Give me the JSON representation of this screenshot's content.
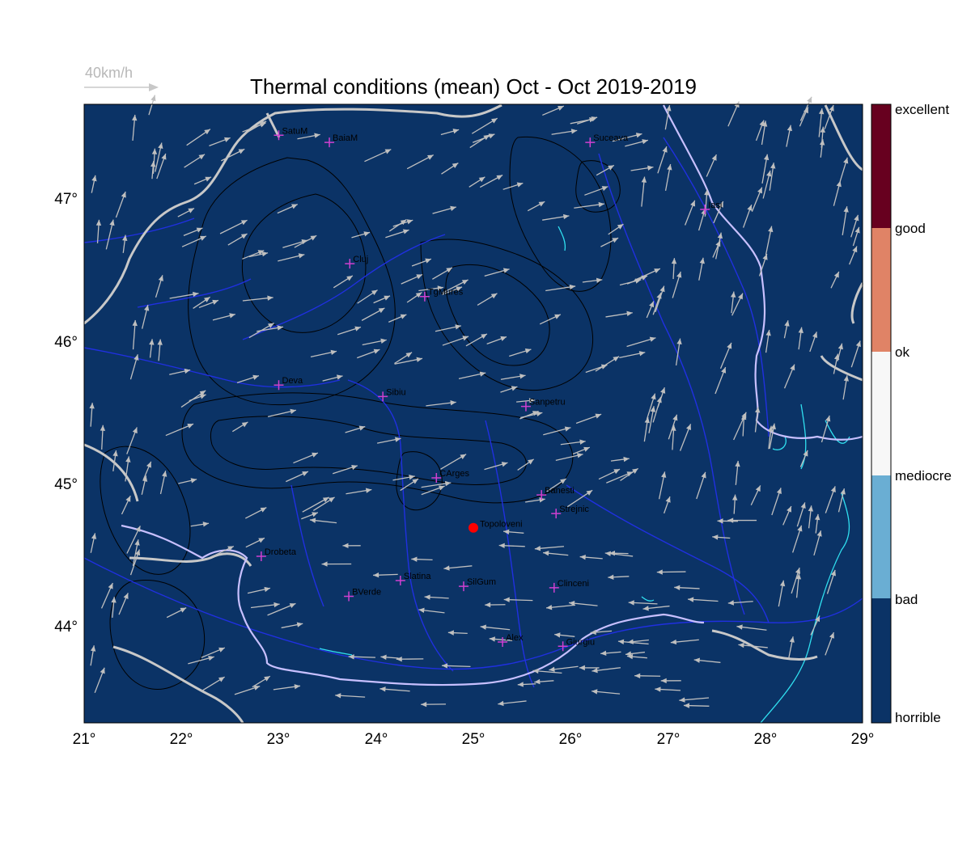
{
  "title": "Thermal conditions (mean) Oct - Oct  2019-2019",
  "scale": {
    "label": "40km/h"
  },
  "map": {
    "lon_range": [
      21,
      29
    ],
    "lat_range": [
      43.3333,
      47.6667
    ],
    "lon_ticks": [
      "21°",
      "22°",
      "23°",
      "24°",
      "25°",
      "26°",
      "27°",
      "28°",
      "29°"
    ],
    "lat_ticks": [
      "47°",
      "46°",
      "45°",
      "44°"
    ],
    "fill_color": "#0b3366",
    "border_color": "#c8c8c8",
    "river_color": "#2030e0",
    "lake_color": "#30e0f0",
    "contour_color": "#000000",
    "station_color": "#d040d0",
    "highlight_color": "#ff0000",
    "arrow_color": "#bfbfbf"
  },
  "stations": [
    {
      "name": "SatuM",
      "lon": 23.0,
      "lat": 47.45
    },
    {
      "name": "BaiaM",
      "lon": 23.52,
      "lat": 47.4
    },
    {
      "name": "Suceava",
      "lon": 26.2,
      "lat": 47.4
    },
    {
      "name": "Iasi",
      "lon": 27.38,
      "lat": 46.93
    },
    {
      "name": "Cluj",
      "lon": 23.73,
      "lat": 46.55
    },
    {
      "name": "TgMures",
      "lon": 24.5,
      "lat": 46.32
    },
    {
      "name": "Deva",
      "lon": 23.0,
      "lat": 45.7
    },
    {
      "name": "Sibiu",
      "lon": 24.07,
      "lat": 45.62
    },
    {
      "name": "Sanpetru",
      "lon": 25.54,
      "lat": 45.55
    },
    {
      "name": "CArges",
      "lon": 24.62,
      "lat": 45.05
    },
    {
      "name": "Banesti",
      "lon": 25.7,
      "lat": 44.93
    },
    {
      "name": "Strejnic",
      "lon": 25.85,
      "lat": 44.8
    },
    {
      "name": "Drobeta",
      "lon": 22.82,
      "lat": 44.5
    },
    {
      "name": "Slatina",
      "lon": 24.25,
      "lat": 44.33
    },
    {
      "name": "SilGum",
      "lon": 24.9,
      "lat": 44.29
    },
    {
      "name": "Clinceni",
      "lon": 25.83,
      "lat": 44.28
    },
    {
      "name": "BVerde",
      "lon": 23.72,
      "lat": 44.22
    },
    {
      "name": "Alex",
      "lon": 25.3,
      "lat": 43.9
    },
    {
      "name": "Giurgiu",
      "lon": 25.92,
      "lat": 43.87
    }
  ],
  "highlight": {
    "name": "Topoloveni",
    "lon": 25.0,
    "lat": 44.7
  },
  "colorbar": {
    "categories": [
      {
        "label": "excellent",
        "color": "#67001f"
      },
      {
        "label": "good",
        "color": "#67001f"
      },
      {
        "label": "ok",
        "color": "#e08366"
      },
      {
        "label": "mediocre",
        "color": "#f7f7f7"
      },
      {
        "label": "bad",
        "color": "#6aaed3"
      },
      {
        "label": "horrible",
        "color": "#0b3366"
      }
    ]
  }
}
